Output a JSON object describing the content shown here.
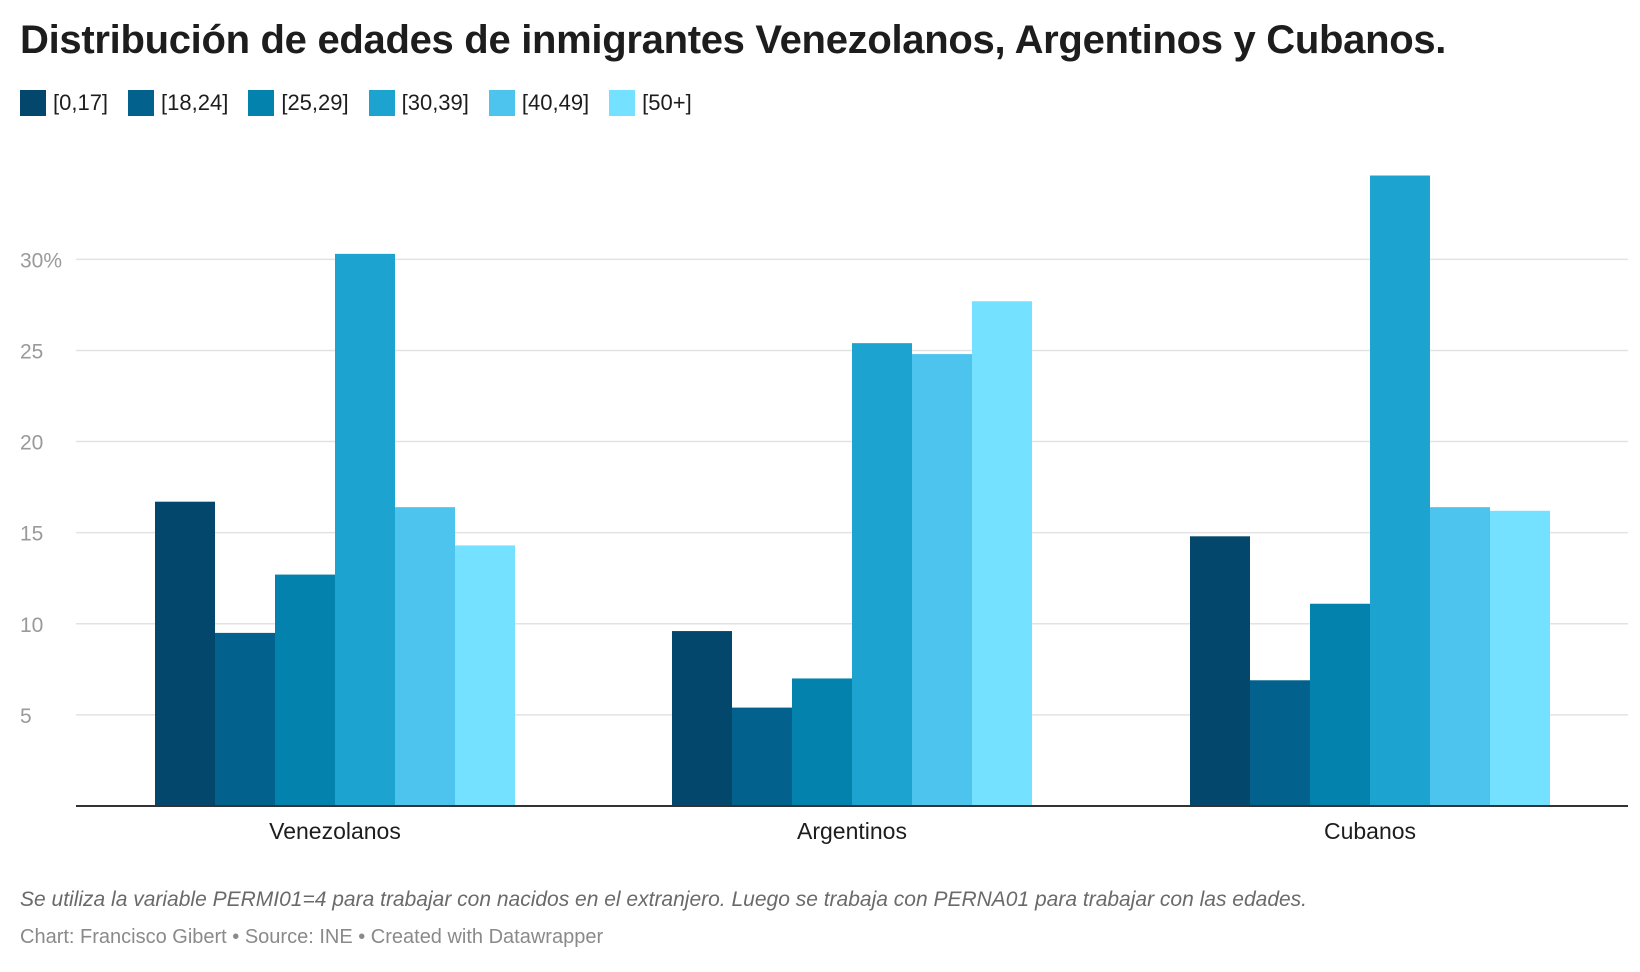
{
  "title": "Distribución de edades de inmigrantes Venezolanos, Argentinos y Cubanos.",
  "legend": [
    {
      "label": "[0,17]",
      "color": "#03476c"
    },
    {
      "label": "[18,24]",
      "color": "#02628d"
    },
    {
      "label": "[25,29]",
      "color": "#0382ae"
    },
    {
      "label": "[30,39]",
      "color": "#1ca3d0"
    },
    {
      "label": "[40,49]",
      "color": "#4dc4ee"
    },
    {
      "label": "[50+]",
      "color": "#73e1ff"
    }
  ],
  "chart_data": {
    "type": "bar",
    "categories": [
      "Venezolanos",
      "Argentinos",
      "Cubanos"
    ],
    "series": [
      {
        "name": "[0,17]",
        "values": [
          16.7,
          9.6,
          14.8
        ]
      },
      {
        "name": "[18,24]",
        "values": [
          9.5,
          5.4,
          6.9
        ]
      },
      {
        "name": "[25,29]",
        "values": [
          12.7,
          7.0,
          11.1
        ]
      },
      {
        "name": "[30,39]",
        "values": [
          30.3,
          25.4,
          34.6
        ]
      },
      {
        "name": "[40,49]",
        "values": [
          16.4,
          24.8,
          16.4
        ]
      },
      {
        "name": "[50+]",
        "values": [
          14.3,
          27.7,
          16.2
        ]
      }
    ],
    "yticks": [
      5,
      10,
      15,
      20,
      25,
      30
    ],
    "ytick_labels": [
      "5",
      "10",
      "15",
      "20",
      "25",
      "30%"
    ],
    "ylim": [
      0,
      36
    ],
    "grid": true,
    "legend_position": "top-left"
  },
  "note": "Se utiliza la variable PERMI01=4 para trabajar con nacidos en el extranjero. Luego se trabaja con PERNA01 para trabajar con las edades.",
  "credits": "Chart: Francisco Gibert • Source: INE • Created with Datawrapper"
}
